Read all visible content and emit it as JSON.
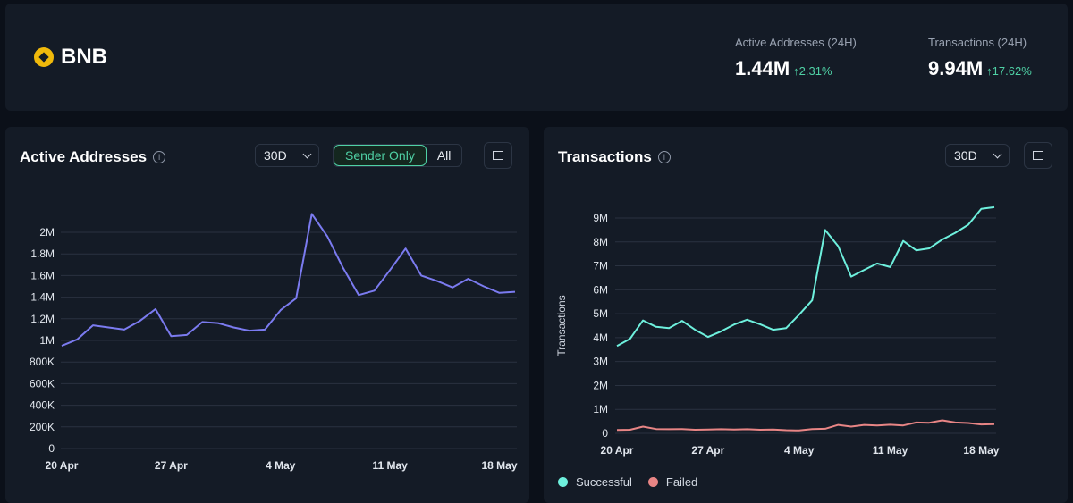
{
  "header": {
    "coin_name": "BNB",
    "coin_color": "#f0b90b",
    "stats": [
      {
        "label": "Active Addresses (24H)",
        "value": "1.44M",
        "change": "2.31%",
        "arrow": "↑"
      },
      {
        "label": "Transactions (24H)",
        "value": "9.94M",
        "change": "17.62%",
        "arrow": "↑"
      }
    ]
  },
  "active_addresses": {
    "title": "Active Addresses",
    "range": "30D",
    "toggle": {
      "sender_only": "Sender Only",
      "all": "All",
      "selected": "sender_only"
    }
  },
  "transactions": {
    "title": "Transactions",
    "range": "30D",
    "legend": [
      {
        "name": "Successful",
        "color": "#6ef0dd"
      },
      {
        "name": "Failed",
        "color": "#e88585"
      }
    ]
  },
  "info_icon": "i",
  "chart_data": [
    {
      "type": "line",
      "x": [
        "20 Apr",
        "21 Apr",
        "22 Apr",
        "23 Apr",
        "24 Apr",
        "25 Apr",
        "26 Apr",
        "27 Apr",
        "28 Apr",
        "29 Apr",
        "30 Apr",
        "1 May",
        "2 May",
        "3 May",
        "4 May",
        "5 May",
        "6 May",
        "7 May",
        "8 May",
        "9 May",
        "10 May",
        "11 May",
        "12 May",
        "13 May",
        "14 May",
        "15 May",
        "16 May",
        "17 May",
        "18 May",
        "19 May"
      ],
      "xticks": [
        "20 Apr",
        "27 Apr",
        "4 May",
        "11 May",
        "18 May"
      ],
      "xtick_index": [
        0,
        7,
        14,
        21,
        28
      ],
      "yticks": [
        "0",
        "200K",
        "400K",
        "600K",
        "800K",
        "1M",
        "1.2M",
        "1.4M",
        "1.6M",
        "1.8M",
        "2M"
      ],
      "ylim": [
        0,
        2000000
      ],
      "series": [
        {
          "color": "#7b7bf0",
          "values": [
            950000,
            1010000,
            1140000,
            1120000,
            1100000,
            1180000,
            1290000,
            1040000,
            1050000,
            1170000,
            1160000,
            1120000,
            1090000,
            1100000,
            1280000,
            1390000,
            2170000,
            1960000,
            1670000,
            1420000,
            1460000,
            1650000,
            1850000,
            1600000,
            1550000,
            1490000,
            1570000,
            1500000,
            1440000,
            1450000
          ]
        }
      ]
    },
    {
      "type": "line",
      "x": [
        "20 Apr",
        "21 Apr",
        "22 Apr",
        "23 Apr",
        "24 Apr",
        "25 Apr",
        "26 Apr",
        "27 Apr",
        "28 Apr",
        "29 Apr",
        "30 Apr",
        "1 May",
        "2 May",
        "3 May",
        "4 May",
        "5 May",
        "6 May",
        "7 May",
        "8 May",
        "9 May",
        "10 May",
        "11 May",
        "12 May",
        "13 May",
        "14 May",
        "15 May",
        "16 May",
        "17 May",
        "18 May",
        "19 May"
      ],
      "xticks": [
        "20 Apr",
        "27 Apr",
        "4 May",
        "11 May",
        "18 May"
      ],
      "xtick_index": [
        0,
        7,
        14,
        21,
        28
      ],
      "yticks": [
        "0",
        "1M",
        "2M",
        "3M",
        "4M",
        "5M",
        "6M",
        "7M",
        "8M",
        "9M"
      ],
      "ylim": [
        0,
        9000000
      ],
      "ylabel": "Transactions",
      "series": [
        {
          "name": "Successful",
          "color": "#6ef0dd",
          "values": [
            3650000,
            3950000,
            4720000,
            4450000,
            4400000,
            4700000,
            4330000,
            4030000,
            4260000,
            4550000,
            4750000,
            4560000,
            4330000,
            4400000,
            4960000,
            5560000,
            8500000,
            7820000,
            6550000,
            6830000,
            7100000,
            6950000,
            8040000,
            7650000,
            7730000,
            8100000,
            8380000,
            8720000,
            9380000,
            9450000
          ]
        },
        {
          "name": "Failed",
          "color": "#e88585",
          "values": [
            140000,
            150000,
            280000,
            180000,
            170000,
            180000,
            150000,
            160000,
            170000,
            160000,
            170000,
            150000,
            160000,
            130000,
            120000,
            180000,
            190000,
            350000,
            280000,
            350000,
            330000,
            360000,
            330000,
            450000,
            440000,
            540000,
            450000,
            430000,
            370000,
            380000
          ]
        }
      ]
    }
  ]
}
